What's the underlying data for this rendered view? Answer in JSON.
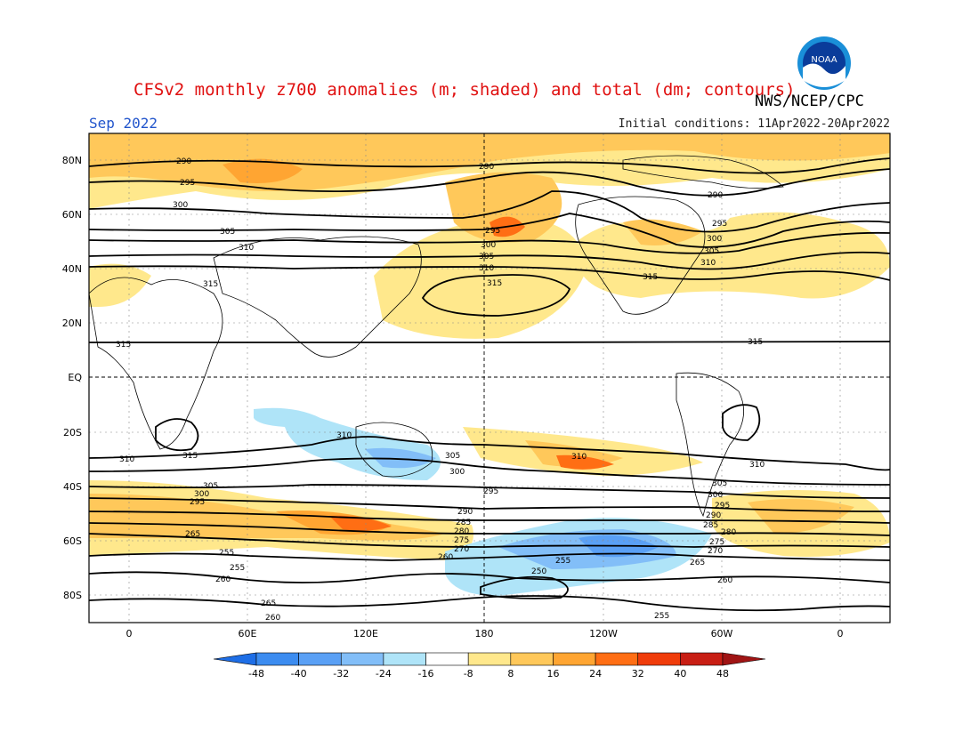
{
  "title": "CFSv2 monthly z700 anomalies (m; shaded) and total (dm; contours)",
  "agency": "NWS/NCEP/CPC",
  "month_label": "Sep 2022",
  "initial_conditions": "Initial conditions: 11Apr2022-20Apr2022",
  "logo_text": "NOAA",
  "lat_labels": [
    "80N",
    "60N",
    "40N",
    "20N",
    "EQ",
    "20S",
    "40S",
    "60S",
    "80S"
  ],
  "lon_labels": [
    "0",
    "60E",
    "120E",
    "180",
    "120W",
    "60W",
    "0"
  ],
  "colorbar": {
    "labels": [
      "-48",
      "-40",
      "-32",
      "-24",
      "-16",
      "-8",
      "8",
      "16",
      "24",
      "32",
      "40",
      "48"
    ],
    "colors": [
      "#1e6ee6",
      "#3c8cf0",
      "#5aa0f5",
      "#82bef8",
      "#afe4f8",
      "#ffffff",
      "#ffe88c",
      "#ffc85a",
      "#ffa532",
      "#ff6e14",
      "#f03c0a",
      "#c81e14",
      "#a01414"
    ]
  },
  "contour_labels": {
    "c290": "290",
    "c295": "295",
    "c300": "300",
    "c305": "305",
    "c310": "310",
    "c315": "315",
    "c250": "250",
    "c255": "255",
    "c260": "260",
    "c265": "265",
    "c270": "270",
    "c275": "275",
    "c280": "280",
    "c285": "285"
  }
}
